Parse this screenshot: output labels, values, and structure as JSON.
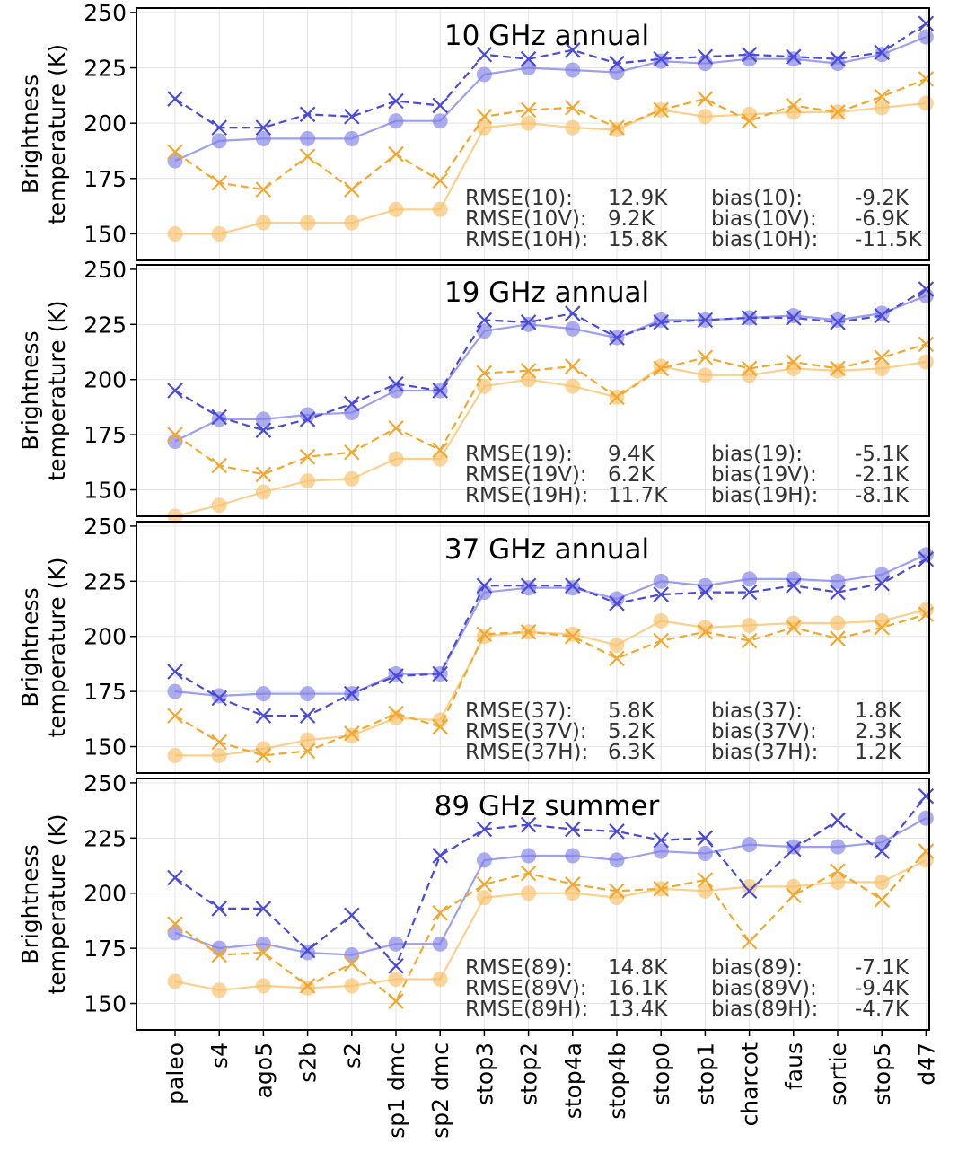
{
  "chart_data": [
    {
      "type": "line",
      "title": "10 GHz annual",
      "ylabel_line1": "Brightness",
      "ylabel_line2": "temperature (K)",
      "ylim": [
        138,
        252
      ],
      "yticks": [
        150,
        175,
        200,
        225,
        250
      ],
      "categories": [
        "paleo",
        "s4",
        "ago5",
        "s2b",
        "s2",
        "sp1 dmc",
        "sp2 dmc",
        "stop3",
        "stop2",
        "stop4a",
        "stop4b",
        "stop0",
        "stop1",
        "charcot",
        "faus",
        "sortie",
        "stop5",
        "d47"
      ],
      "series": [
        {
          "pol": "V",
          "kind": "observed",
          "color": "#4a4ad6",
          "values": [
            211,
            198,
            198,
            204,
            203,
            210,
            208,
            231,
            229,
            233,
            227,
            229,
            230,
            231,
            230,
            229,
            232,
            245
          ]
        },
        {
          "pol": "V",
          "kind": "model",
          "color": "#7f80e6",
          "values": [
            183,
            192,
            193,
            193,
            193,
            201,
            201,
            222,
            225,
            224,
            223,
            228,
            227,
            229,
            229,
            227,
            231,
            239
          ]
        },
        {
          "pol": "H",
          "kind": "observed",
          "color": "#f0a830",
          "values": [
            187,
            173,
            170,
            185,
            170,
            186,
            174,
            203,
            206,
            207,
            198,
            206,
            211,
            201,
            208,
            205,
            212,
            220
          ]
        },
        {
          "pol": "H",
          "kind": "model",
          "color": "#f8c068",
          "values": [
            150,
            150,
            155,
            155,
            155,
            161,
            161,
            198,
            200,
            198,
            197,
            206,
            203,
            204,
            205,
            205,
            207,
            209
          ]
        }
      ],
      "stats": [
        [
          "RMSE(10):",
          "12.9K",
          "bias(10):",
          "-9.2K"
        ],
        [
          "RMSE(10V):",
          "9.2K",
          "bias(10V):",
          "-6.9K"
        ],
        [
          "RMSE(10H):",
          "15.8K",
          "bias(10H):",
          "-11.5K"
        ]
      ]
    },
    {
      "type": "line",
      "title": "19 GHz annual",
      "ylabel_line1": "Brightness",
      "ylabel_line2": "temperature (K)",
      "ylim": [
        138,
        252
      ],
      "yticks": [
        150,
        175,
        200,
        225,
        250
      ],
      "categories": [
        "paleo",
        "s4",
        "ago5",
        "s2b",
        "s2",
        "sp1 dmc",
        "sp2 dmc",
        "stop3",
        "stop2",
        "stop4a",
        "stop4b",
        "stop0",
        "stop1",
        "charcot",
        "faus",
        "sortie",
        "stop5",
        "d47"
      ],
      "series": [
        {
          "pol": "V",
          "kind": "observed",
          "color": "#4a4ad6",
          "values": [
            195,
            183,
            177,
            182,
            189,
            198,
            195,
            227,
            226,
            230,
            219,
            226,
            227,
            228,
            228,
            226,
            229,
            241
          ]
        },
        {
          "pol": "V",
          "kind": "model",
          "color": "#7f80e6",
          "values": [
            172,
            182,
            182,
            184,
            185,
            195,
            195,
            222,
            225,
            223,
            219,
            227,
            227,
            228,
            229,
            227,
            230,
            238
          ]
        },
        {
          "pol": "H",
          "kind": "observed",
          "color": "#f0a830",
          "values": [
            175,
            161,
            157,
            165,
            167,
            178,
            168,
            203,
            204,
            206,
            192,
            205,
            210,
            205,
            208,
            205,
            210,
            216
          ]
        },
        {
          "pol": "H",
          "kind": "model",
          "color": "#f8c068",
          "values": [
            138,
            143,
            149,
            154,
            155,
            164,
            164,
            197,
            200,
            197,
            192,
            206,
            202,
            202,
            205,
            204,
            205,
            208
          ]
        }
      ],
      "stats": [
        [
          "RMSE(19):",
          "9.4K",
          "bias(19):",
          "-5.1K"
        ],
        [
          "RMSE(19V):",
          "6.2K",
          "bias(19V):",
          "-2.1K"
        ],
        [
          "RMSE(19H):",
          "11.7K",
          "bias(19H):",
          "-8.1K"
        ]
      ]
    },
    {
      "type": "line",
      "title": "37 GHz annual",
      "ylabel_line1": "Brightness",
      "ylabel_line2": "temperature (K)",
      "ylim": [
        138,
        252
      ],
      "yticks": [
        150,
        175,
        200,
        225,
        250
      ],
      "categories": [
        "paleo",
        "s4",
        "ago5",
        "s2b",
        "s2",
        "sp1 dmc",
        "sp2 dmc",
        "stop3",
        "stop2",
        "stop4a",
        "stop4b",
        "stop0",
        "stop1",
        "charcot",
        "faus",
        "sortie",
        "stop5",
        "d47"
      ],
      "series": [
        {
          "pol": "V",
          "kind": "observed",
          "color": "#4a4ad6",
          "values": [
            184,
            172,
            164,
            164,
            174,
            182,
            183,
            223,
            223,
            223,
            215,
            219,
            220,
            220,
            223,
            220,
            224,
            235
          ]
        },
        {
          "pol": "V",
          "kind": "model",
          "color": "#7f80e6",
          "values": [
            175,
            173,
            174,
            174,
            174,
            183,
            183,
            220,
            222,
            222,
            217,
            225,
            223,
            226,
            226,
            225,
            228,
            237
          ]
        },
        {
          "pol": "H",
          "kind": "observed",
          "color": "#f0a830",
          "values": [
            164,
            152,
            146,
            148,
            156,
            165,
            159,
            201,
            202,
            200,
            190,
            198,
            202,
            198,
            204,
            199,
            204,
            210
          ]
        },
        {
          "pol": "H",
          "kind": "model",
          "color": "#f8c068",
          "values": [
            146,
            146,
            149,
            153,
            155,
            163,
            162,
            200,
            202,
            201,
            196,
            207,
            204,
            205,
            206,
            206,
            207,
            212
          ]
        }
      ],
      "stats": [
        [
          "RMSE(37):",
          "5.8K",
          "bias(37):",
          "1.8K"
        ],
        [
          "RMSE(37V):",
          "5.2K",
          "bias(37V):",
          "2.3K"
        ],
        [
          "RMSE(37H):",
          "6.3K",
          "bias(37H):",
          "1.2K"
        ]
      ]
    },
    {
      "type": "line",
      "title": "89 GHz summer",
      "ylabel_line1": "Brightness",
      "ylabel_line2": "temperature (K)",
      "ylim": [
        138,
        252
      ],
      "yticks": [
        150,
        175,
        200,
        225,
        250
      ],
      "categories": [
        "paleo",
        "s4",
        "ago5",
        "s2b",
        "s2",
        "sp1 dmc",
        "sp2 dmc",
        "stop3",
        "stop2",
        "stop4a",
        "stop4b",
        "stop0",
        "stop1",
        "charcot",
        "faus",
        "sortie",
        "stop5",
        "d47"
      ],
      "series": [
        {
          "pol": "V",
          "kind": "observed",
          "color": "#4a4ad6",
          "values": [
            207,
            193,
            193,
            174,
            190,
            167,
            217,
            229,
            231,
            229,
            228,
            224,
            225,
            201,
            220,
            233,
            219,
            244
          ]
        },
        {
          "pol": "V",
          "kind": "model",
          "color": "#7f80e6",
          "values": [
            182,
            175,
            177,
            173,
            172,
            177,
            177,
            215,
            217,
            217,
            215,
            219,
            218,
            222,
            221,
            221,
            223,
            234
          ]
        },
        {
          "pol": "H",
          "kind": "observed",
          "color": "#f0a830",
          "values": [
            186,
            172,
            173,
            158,
            168,
            151,
            191,
            204,
            209,
            204,
            201,
            202,
            206,
            178,
            199,
            210,
            197,
            219
          ]
        },
        {
          "pol": "H",
          "kind": "model",
          "color": "#f8c068",
          "values": [
            160,
            156,
            158,
            157,
            158,
            161,
            161,
            198,
            200,
            200,
            198,
            202,
            201,
            203,
            203,
            205,
            205,
            215
          ]
        }
      ],
      "stats": [
        [
          "RMSE(89):",
          "14.8K",
          "bias(89):",
          "-7.1K"
        ],
        [
          "RMSE(89V):",
          "16.1K",
          "bias(89V):",
          "-9.4K"
        ],
        [
          "RMSE(89H):",
          "13.4K",
          "bias(89H):",
          "-4.7K"
        ]
      ]
    }
  ]
}
